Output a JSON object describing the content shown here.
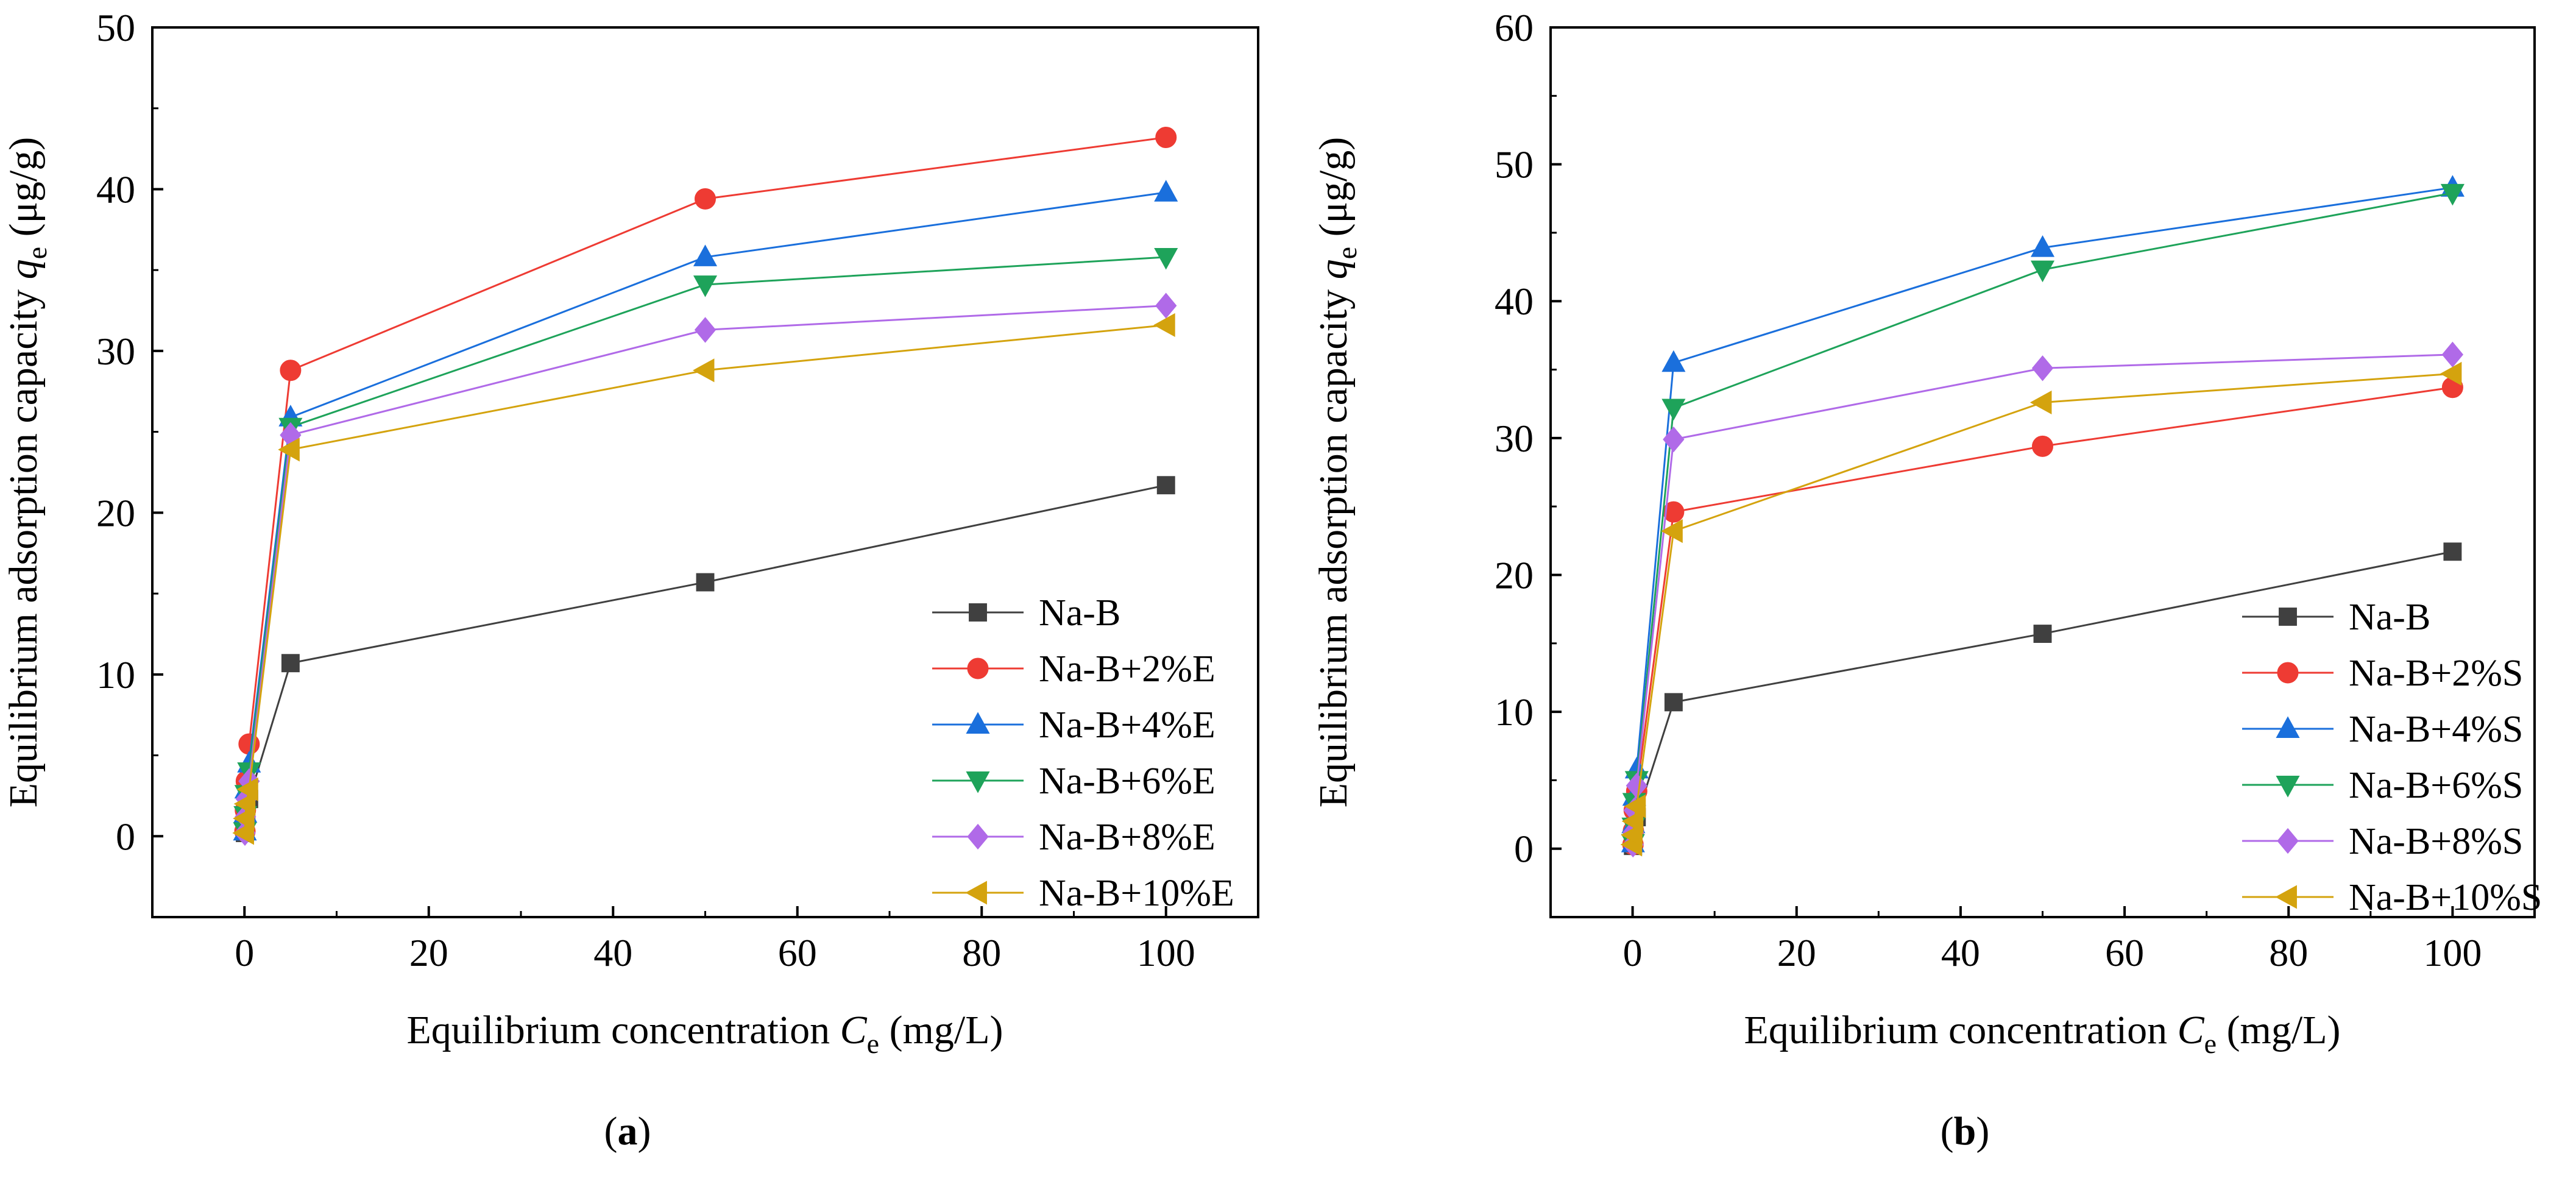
{
  "series_styles": [
    {
      "color": "#404040",
      "marker": "square"
    },
    {
      "color": "#ee3b33",
      "marker": "circle"
    },
    {
      "color": "#1a6fdc",
      "marker": "triangle-up"
    },
    {
      "color": "#1ea35a",
      "marker": "triangle-down"
    },
    {
      "color": "#b06ae8",
      "marker": "diamond"
    },
    {
      "color": "#d4a30e",
      "marker": "triangle-left"
    }
  ],
  "chart_data": [
    {
      "type": "line",
      "panel_label": {
        "open": "(",
        "letter": "a",
        "close": ")"
      },
      "xlabel": {
        "text": "Equilibrium concentration ",
        "symbol": "C",
        "sub": "e",
        "unit": " (mg/L)"
      },
      "ylabel": {
        "text": "Equilibrium adsorption capacity ",
        "symbol": "q",
        "sub": "e",
        "unit": " (μg/g)"
      },
      "xlim": [
        -10,
        110
      ],
      "ylim": [
        -5,
        50
      ],
      "xticks": [
        0,
        20,
        40,
        60,
        80,
        100
      ],
      "yticks": [
        0,
        10,
        20,
        30,
        40,
        50
      ],
      "legend_position": "bottom-right",
      "x": [
        0.05,
        0.1,
        0.2,
        0.5,
        5,
        50,
        100
      ],
      "series": [
        {
          "name": "Na-B",
          "values": [
            0.2,
            0.6,
            1.5,
            2.3,
            10.7,
            15.7,
            21.7
          ]
        },
        {
          "name": "Na-B+2%E",
          "values": [
            0.3,
            1.6,
            3.4,
            5.7,
            28.8,
            39.4,
            43.2
          ]
        },
        {
          "name": "Na-B+4%E",
          "values": [
            0.3,
            1.4,
            2.9,
            4.5,
            25.9,
            35.8,
            39.8
          ]
        },
        {
          "name": "Na-B+6%E",
          "values": [
            0.3,
            1.3,
            2.6,
            4.0,
            25.3,
            34.1,
            35.8
          ]
        },
        {
          "name": "Na-B+8%E",
          "values": [
            0.2,
            1.2,
            2.3,
            3.4,
            24.8,
            31.3,
            32.8
          ]
        },
        {
          "name": "Na-B+10%E",
          "values": [
            0.2,
            1.1,
            2.0,
            2.9,
            23.9,
            28.8,
            31.6
          ]
        }
      ]
    },
    {
      "type": "line",
      "panel_label": {
        "open": "(",
        "letter": "b",
        "close": ")"
      },
      "xlabel": {
        "text": "Equilibrium concentration ",
        "symbol": "C",
        "sub": "e",
        "unit": " (mg/L)"
      },
      "ylabel": {
        "text": "Equilibrium adsorption capacity ",
        "symbol": "q",
        "sub": "e",
        "unit": " (μg/g)"
      },
      "xlim": [
        -10,
        110
      ],
      "ylim": [
        -5,
        60
      ],
      "xticks": [
        0,
        20,
        40,
        60,
        80,
        100
      ],
      "yticks": [
        0,
        10,
        20,
        30,
        40,
        50,
        60
      ],
      "legend_position": "bottom-right",
      "x": [
        0.05,
        0.1,
        0.2,
        0.5,
        5,
        50,
        100
      ],
      "series": [
        {
          "name": "Na-B",
          "values": [
            0.2,
            0.6,
            1.5,
            2.3,
            10.7,
            15.7,
            21.7
          ]
        },
        {
          "name": "Na-B+2%S",
          "values": [
            0.3,
            1.3,
            2.8,
            4.2,
            24.6,
            29.4,
            33.7
          ]
        },
        {
          "name": "Na-B+4%S",
          "values": [
            0.4,
            1.8,
            3.8,
            5.8,
            35.5,
            43.9,
            48.3
          ]
        },
        {
          "name": "Na-B+6%S",
          "values": [
            0.4,
            1.6,
            3.4,
            5.0,
            32.2,
            42.3,
            47.9
          ]
        },
        {
          "name": "Na-B+8%S",
          "values": [
            0.3,
            1.2,
            2.8,
            4.6,
            29.9,
            35.1,
            36.1
          ]
        },
        {
          "name": "Na-B+10%S",
          "values": [
            0.3,
            1.0,
            2.0,
            3.1,
            23.2,
            32.6,
            34.7
          ]
        }
      ]
    }
  ]
}
